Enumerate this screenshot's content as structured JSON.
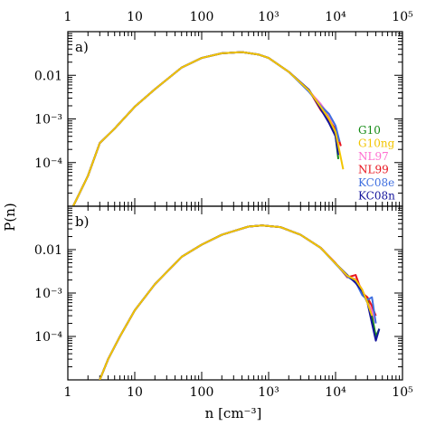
{
  "chart_data": [
    {
      "type": "line",
      "panel_label": "a)",
      "xscale": "log",
      "yscale": "log",
      "xlim": [
        1,
        100000
      ],
      "ylim": [
        1e-05,
        0.1
      ],
      "x_ticks": [
        {
          "value": 1,
          "label": "1"
        },
        {
          "value": 10,
          "label": "10"
        },
        {
          "value": 100,
          "label": "100"
        },
        {
          "value": 1000,
          "label": "10³"
        },
        {
          "value": 10000,
          "label": "10⁴"
        },
        {
          "value": 100000,
          "label": "10⁵"
        }
      ],
      "y_ticks": [
        {
          "value": 0.0001,
          "label": "10⁻⁴"
        },
        {
          "value": 0.001,
          "label": "10⁻³"
        },
        {
          "value": 0.01,
          "label": "0.01"
        }
      ],
      "legend": {
        "placement": "right",
        "entries": [
          {
            "name": "G10",
            "color": "#138a13"
          },
          {
            "name": "G10ng",
            "color": "#f2c500"
          },
          {
            "name": "NL97",
            "color": "#ff6fd0"
          },
          {
            "name": "NL99",
            "color": "#e8121c"
          },
          {
            "name": "KC08e",
            "color": "#3f6fe0"
          },
          {
            "name": "KC08n",
            "color": "#14149c"
          }
        ]
      },
      "series": [
        {
          "name": "G10",
          "color": "#138a13",
          "x": [
            1.2,
            1.5,
            2,
            3,
            5,
            10,
            20,
            50,
            100,
            200,
            400,
            700,
            1000,
            2000,
            4000,
            6000,
            8000,
            10000,
            11000
          ],
          "y": [
            1e-05,
            2e-05,
            5e-05,
            0.00028,
            0.0006,
            0.0019,
            0.0048,
            0.015,
            0.025,
            0.032,
            0.034,
            0.03,
            0.025,
            0.012,
            0.0045,
            0.0018,
            0.0011,
            0.0004,
            0.00012
          ]
        },
        {
          "name": "NL97",
          "color": "#ff6fd0",
          "x": [
            1.2,
            1.5,
            2,
            3,
            5,
            10,
            20,
            50,
            100,
            200,
            400,
            700,
            1000,
            2000,
            4000,
            6000,
            8000,
            10000,
            11000
          ],
          "y": [
            1e-05,
            2e-05,
            5e-05,
            0.00028,
            0.0006,
            0.0019,
            0.0048,
            0.015,
            0.025,
            0.032,
            0.034,
            0.03,
            0.025,
            0.012,
            0.0044,
            0.0022,
            0.0012,
            0.0005,
            0.00025
          ]
        },
        {
          "name": "NL99",
          "color": "#e8121c",
          "x": [
            1.2,
            1.5,
            2,
            3,
            5,
            10,
            20,
            50,
            100,
            200,
            400,
            700,
            1000,
            2000,
            4000,
            6000,
            8000,
            10000,
            12000
          ],
          "y": [
            1e-05,
            2e-05,
            5e-05,
            0.00028,
            0.0006,
            0.0019,
            0.0048,
            0.015,
            0.025,
            0.032,
            0.034,
            0.03,
            0.025,
            0.012,
            0.0046,
            0.0016,
            0.0009,
            0.0006,
            0.00024
          ]
        },
        {
          "name": "KC08e",
          "color": "#3f6fe0",
          "x": [
            1.2,
            1.5,
            2,
            3,
            5,
            10,
            20,
            50,
            100,
            200,
            400,
            700,
            1000,
            2000,
            4000,
            6000,
            8000,
            10000,
            11500
          ],
          "y": [
            1e-05,
            2e-05,
            5e-05,
            0.00028,
            0.0006,
            0.0019,
            0.0048,
            0.015,
            0.025,
            0.032,
            0.034,
            0.03,
            0.025,
            0.012,
            0.0042,
            0.002,
            0.0013,
            0.0007,
            0.0003
          ]
        },
        {
          "name": "KC08n",
          "color": "#14149c",
          "x": [
            1.2,
            1.5,
            2,
            3,
            5,
            10,
            20,
            50,
            100,
            200,
            400,
            700,
            1000,
            2000,
            4000,
            6000,
            8000,
            10000,
            11000
          ],
          "y": [
            1e-05,
            2e-05,
            5e-05,
            0.00028,
            0.0006,
            0.0019,
            0.0048,
            0.015,
            0.025,
            0.032,
            0.034,
            0.03,
            0.025,
            0.012,
            0.0047,
            0.0017,
            0.0008,
            0.0004,
            0.00015
          ]
        },
        {
          "name": "G10ng",
          "color": "#f2c500",
          "x": [
            1.2,
            1.5,
            2,
            3,
            5,
            10,
            20,
            50,
            100,
            200,
            400,
            700,
            1000,
            2000,
            4000,
            6000,
            8000,
            10000,
            13000
          ],
          "y": [
            1e-05,
            2e-05,
            5e-05,
            0.00028,
            0.0006,
            0.0019,
            0.0048,
            0.015,
            0.025,
            0.032,
            0.034,
            0.03,
            0.025,
            0.012,
            0.0045,
            0.0019,
            0.001,
            0.0005,
            7e-05
          ]
        }
      ]
    },
    {
      "type": "line",
      "panel_label": "b)",
      "xscale": "log",
      "yscale": "log",
      "xlabel": "n [cm⁻³]",
      "ylabel": "P(n)",
      "xlim": [
        1,
        100000
      ],
      "ylim": [
        1e-05,
        0.1
      ],
      "x_ticks": [
        {
          "value": 1,
          "label": "1"
        },
        {
          "value": 10,
          "label": "10"
        },
        {
          "value": 100,
          "label": "100"
        },
        {
          "value": 1000,
          "label": "10³"
        },
        {
          "value": 10000,
          "label": "10⁴"
        },
        {
          "value": 100000,
          "label": "10⁵"
        }
      ],
      "y_ticks": [
        {
          "value": 0.0001,
          "label": "10⁻⁴"
        },
        {
          "value": 0.001,
          "label": "10⁻³"
        },
        {
          "value": 0.01,
          "label": "0.01"
        }
      ],
      "series": [
        {
          "name": "G10",
          "color": "#138a13",
          "x": [
            3,
            4,
            6,
            10,
            20,
            50,
            100,
            200,
            500,
            800,
            1500,
            3000,
            6000,
            10000,
            15000,
            20000,
            25000,
            30000,
            35000,
            40000,
            45000
          ],
          "y": [
            1e-05,
            3e-05,
            0.0001,
            0.0004,
            0.0016,
            0.0068,
            0.013,
            0.022,
            0.034,
            0.036,
            0.033,
            0.022,
            0.011,
            0.0048,
            0.0025,
            0.0019,
            0.0011,
            0.0007,
            0.0003,
            0.0001,
            0.00015
          ]
        },
        {
          "name": "NL97",
          "color": "#ff6fd0",
          "x": [
            3,
            4,
            6,
            10,
            20,
            50,
            100,
            200,
            500,
            800,
            1500,
            3000,
            6000,
            10000,
            15000,
            20000,
            25000,
            30000,
            35000,
            40000
          ],
          "y": [
            1e-05,
            3e-05,
            0.0001,
            0.0004,
            0.0016,
            0.0068,
            0.013,
            0.022,
            0.034,
            0.036,
            0.033,
            0.022,
            0.011,
            0.0048,
            0.0024,
            0.0021,
            0.0012,
            0.0006,
            0.0004,
            0.0002
          ]
        },
        {
          "name": "NL99",
          "color": "#e8121c",
          "x": [
            3,
            4,
            6,
            10,
            20,
            50,
            100,
            200,
            500,
            800,
            1500,
            3000,
            6000,
            10000,
            15000,
            20000,
            25000,
            30000,
            35000,
            40000
          ],
          "y": [
            1e-05,
            3e-05,
            0.0001,
            0.0004,
            0.0016,
            0.0068,
            0.013,
            0.022,
            0.034,
            0.036,
            0.033,
            0.022,
            0.011,
            0.0049,
            0.0023,
            0.0026,
            0.001,
            0.0008,
            0.0005,
            0.0003
          ]
        },
        {
          "name": "KC08e",
          "color": "#3f6fe0",
          "x": [
            3,
            4,
            6,
            10,
            20,
            50,
            100,
            200,
            500,
            800,
            1500,
            3000,
            6000,
            10000,
            15000,
            20000,
            25000,
            30000,
            35000,
            40000
          ],
          "y": [
            1e-05,
            3e-05,
            0.0001,
            0.0004,
            0.0016,
            0.0068,
            0.013,
            0.022,
            0.034,
            0.036,
            0.033,
            0.022,
            0.011,
            0.0047,
            0.0024,
            0.0018,
            0.0009,
            0.0007,
            0.0008,
            0.0002
          ]
        },
        {
          "name": "KC08n",
          "color": "#14149c",
          "x": [
            3,
            4,
            6,
            10,
            20,
            50,
            100,
            200,
            500,
            800,
            1500,
            3000,
            6000,
            10000,
            15000,
            20000,
            25000,
            30000,
            35000,
            40000,
            45000
          ],
          "y": [
            1e-05,
            3e-05,
            0.0001,
            0.0004,
            0.0016,
            0.0068,
            0.013,
            0.022,
            0.034,
            0.036,
            0.033,
            0.022,
            0.011,
            0.0048,
            0.0026,
            0.0017,
            0.0011,
            0.0006,
            0.0002,
            8e-05,
            0.00015
          ]
        },
        {
          "name": "G10ng",
          "color": "#f2c500",
          "x": [
            3,
            4,
            6,
            10,
            20,
            50,
            100,
            200,
            500,
            800,
            1500,
            3000,
            6000,
            10000,
            15000,
            20000,
            25000,
            30000,
            35000
          ],
          "y": [
            1e-05,
            3e-05,
            0.0001,
            0.0004,
            0.0016,
            0.0068,
            0.013,
            0.022,
            0.034,
            0.036,
            0.033,
            0.022,
            0.011,
            0.0048,
            0.0025,
            0.002,
            0.0012,
            0.0006,
            0.0003
          ]
        }
      ]
    }
  ]
}
